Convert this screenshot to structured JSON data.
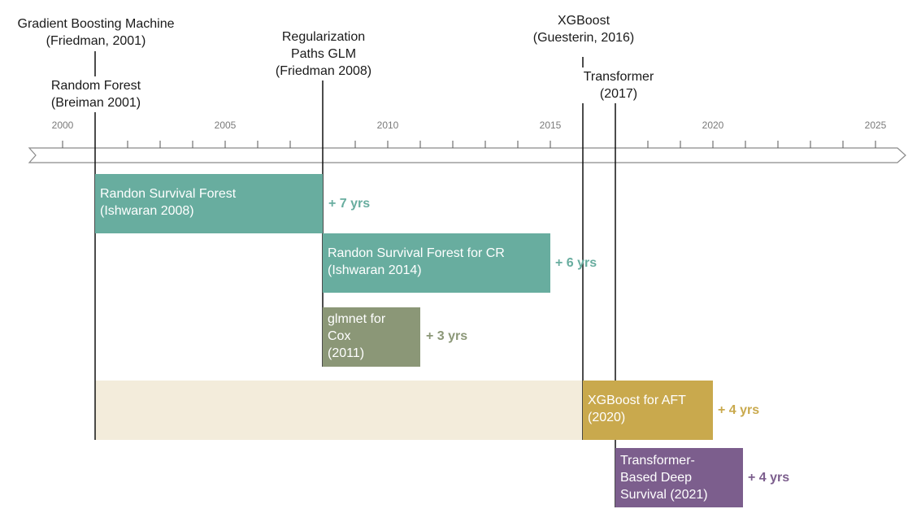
{
  "timeline": {
    "ticks": [
      "2000",
      "2005",
      "2010",
      "2015",
      "2020",
      "2025"
    ]
  },
  "milestones": [
    {
      "id": "gbm",
      "lines": [
        "Gradient Boosting Machine",
        "(Friedman, 2001)"
      ]
    },
    {
      "id": "rf",
      "lines": [
        "Random Forest",
        "(Breiman 2001)"
      ]
    },
    {
      "id": "glm",
      "lines": [
        "Regularization",
        "Paths GLM",
        "(Friedman 2008)"
      ]
    },
    {
      "id": "xgb",
      "lines": [
        "XGBoost",
        "(Guesterin, 2016)"
      ]
    },
    {
      "id": "transformer",
      "lines": [
        "Transformer",
        "(2017)"
      ]
    }
  ],
  "adaptations": [
    {
      "id": "rsf",
      "lines": [
        "Randon Survival Forest",
        "(Ishwaran 2008)"
      ],
      "gain": "+ 7 yrs",
      "color": "#68ad9f"
    },
    {
      "id": "rsf-cr",
      "lines": [
        "Randon Survival Forest for CR",
        "(Ishwaran 2014)"
      ],
      "gain": "+ 6 yrs",
      "color": "#68ad9f"
    },
    {
      "id": "glmnet",
      "lines": [
        "glmnet for",
        "Cox",
        "(2011)"
      ],
      "gain": "+ 3 yrs",
      "color": "#8b9777"
    },
    {
      "id": "xgb-aft",
      "lines": [
        "XGBoost for AFT",
        "(2020)"
      ],
      "gain": "+ 4 yrs",
      "color": "#c9a94d"
    },
    {
      "id": "transformer-surv",
      "lines": [
        "Transformer-",
        "Based Deep",
        "Survival (2021)"
      ],
      "gain": "+ 4 yrs",
      "color": "#7c5e8d"
    }
  ],
  "colors": {
    "gbm_band": "#f3ecdb",
    "axis": "#8a8a8a"
  }
}
